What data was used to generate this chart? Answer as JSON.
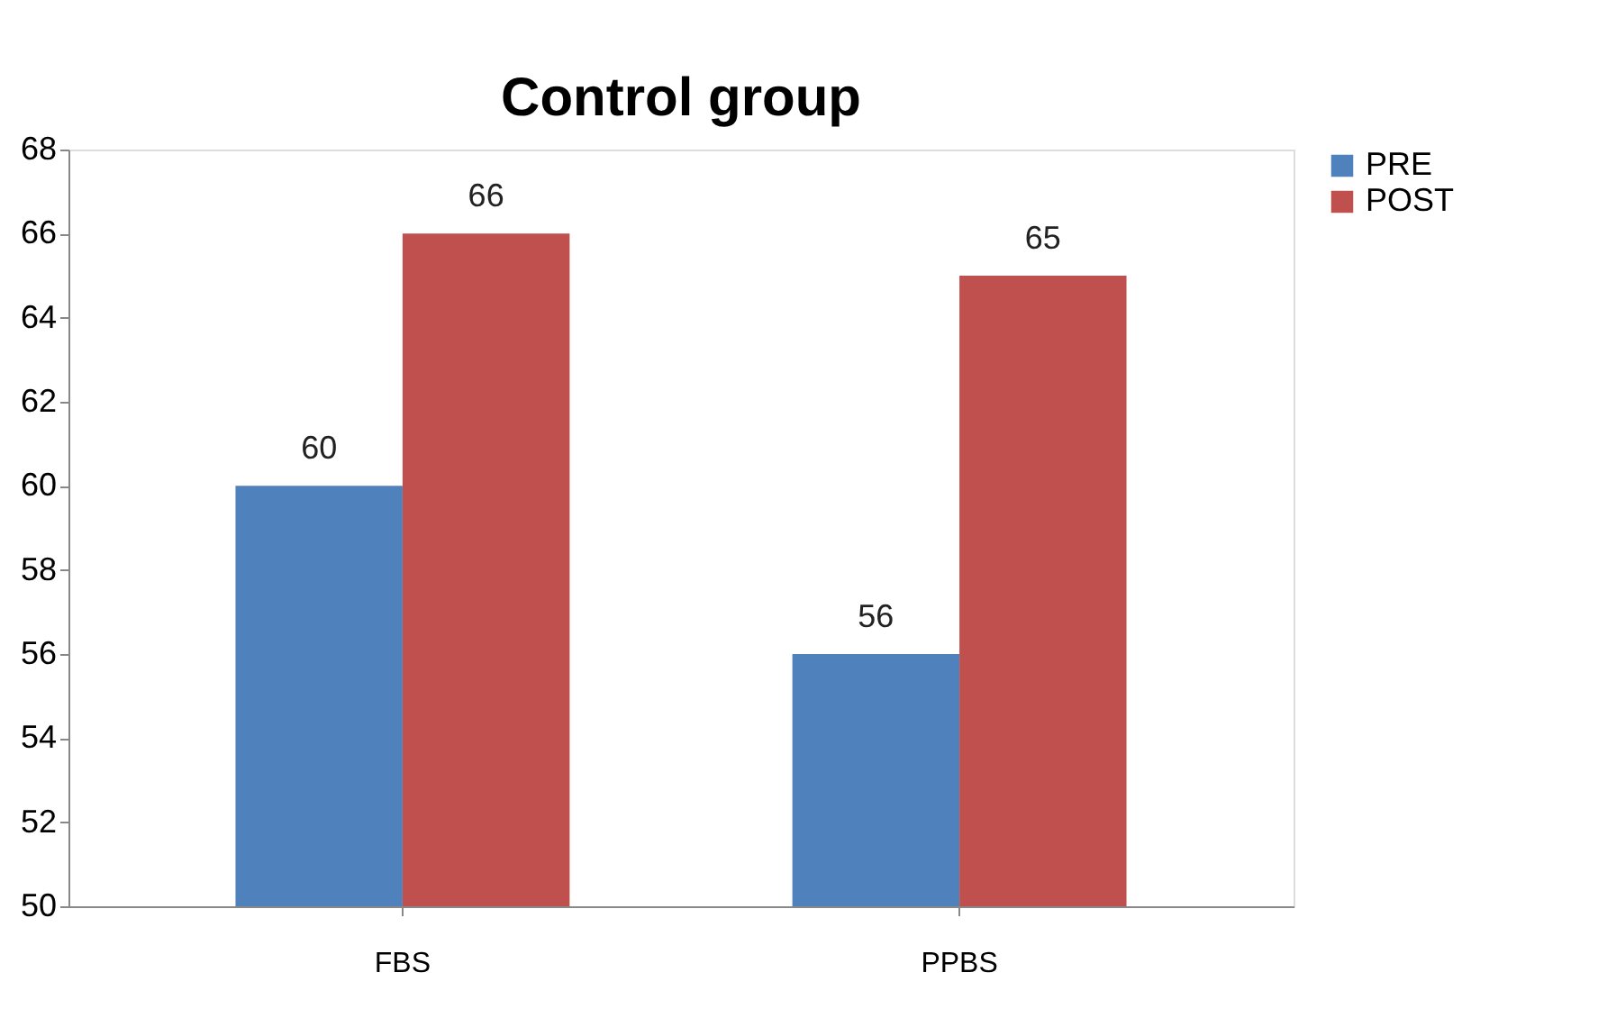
{
  "chart_data": {
    "type": "bar",
    "title": "Control group",
    "categories": [
      "FBS",
      "PPBS"
    ],
    "series": [
      {
        "name": "PRE",
        "color": "#4f81bd",
        "values": [
          60,
          56
        ]
      },
      {
        "name": "POST",
        "color": "#c0504d",
        "values": [
          66,
          65
        ]
      }
    ],
    "ylim": [
      50,
      68
    ],
    "yticks": [
      50,
      52,
      54,
      56,
      58,
      60,
      62,
      64,
      66,
      68
    ],
    "grid": false,
    "legend": "right",
    "data_labels": true
  }
}
